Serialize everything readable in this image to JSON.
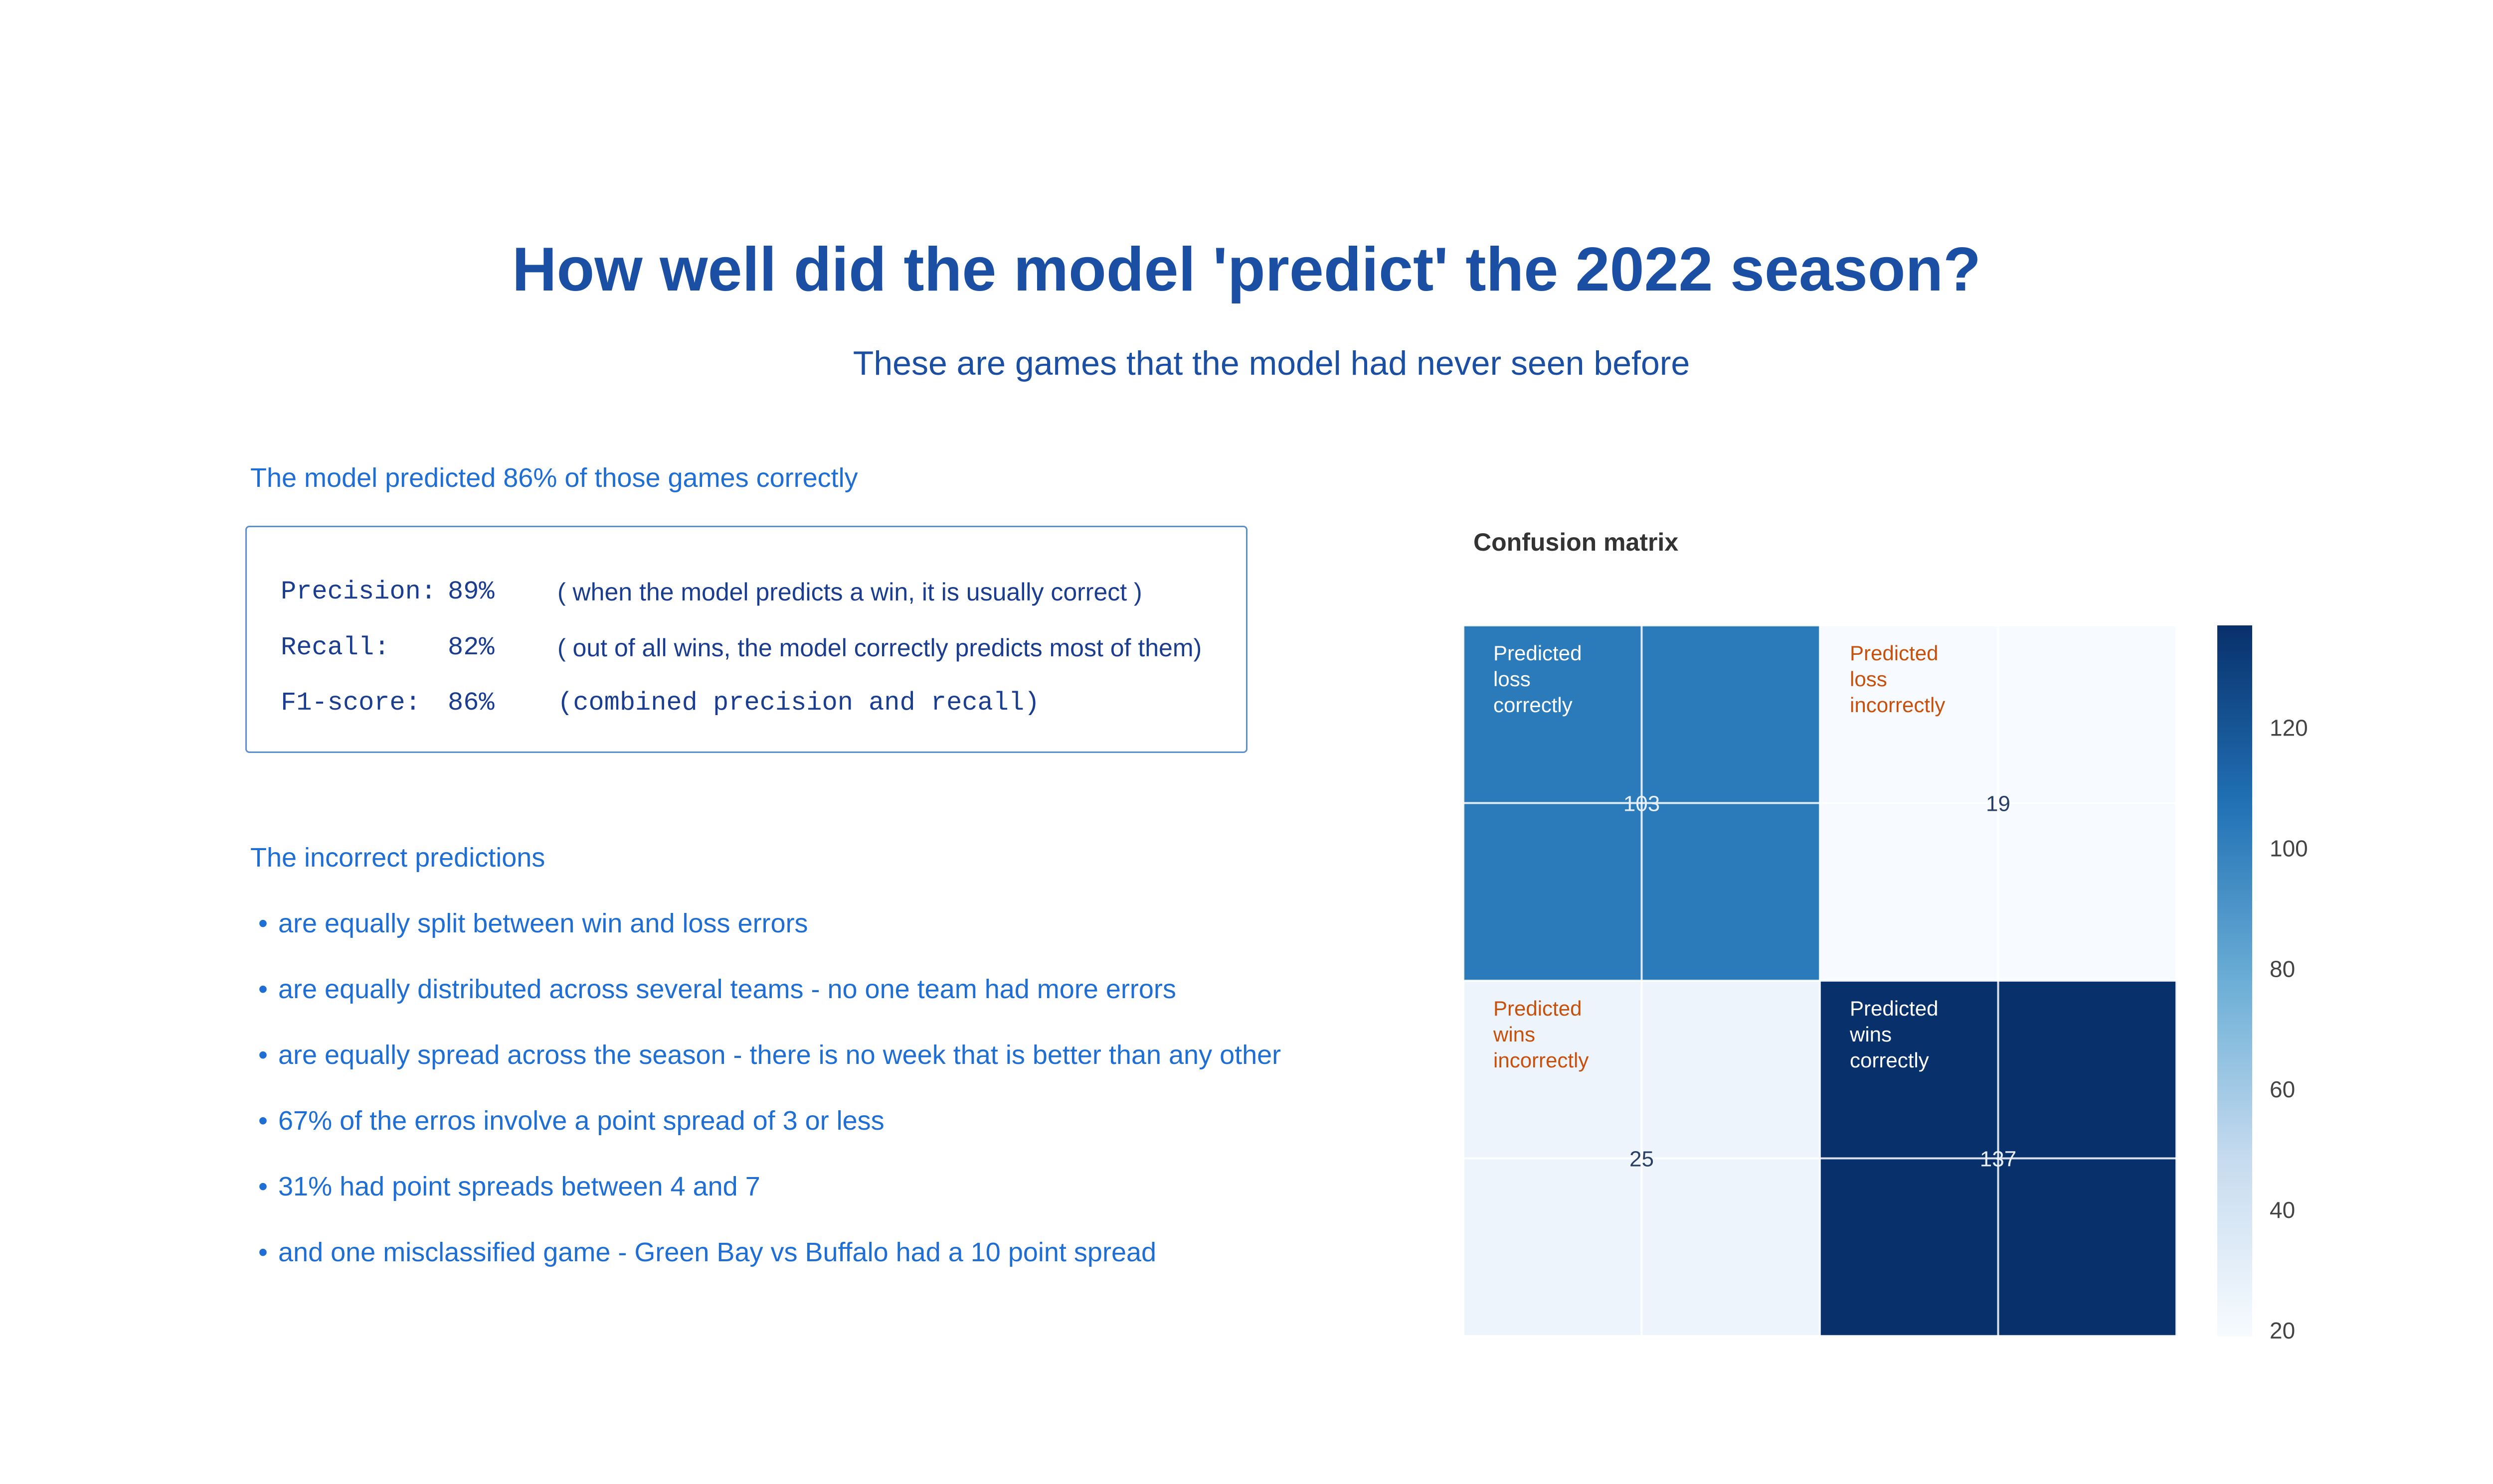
{
  "page": {
    "title": "How well did the model 'predict' the 2022 season?",
    "subtitle": "These are games that the model had never seen before"
  },
  "summary": {
    "accuracy_text": "The model predicted 86% of those games correctly"
  },
  "metrics": [
    {
      "name": "Precision:",
      "value": "89%",
      "note": "( when the model predicts a win, it is usually correct )"
    },
    {
      "name": "Recall:",
      "value": "82%",
      "note": "( out of all wins, the model correctly predicts most of them)"
    },
    {
      "name": "F1-score:",
      "value": "86%",
      "note": "(combined precision and recall)"
    }
  ],
  "incorrect": {
    "heading": "The incorrect predictions",
    "bullets": [
      "are equally split between win and loss errors",
      "are equally distributed across several teams - no one team had more errors",
      "are equally spread across the season - there is no week that is better than any other",
      "67% of the erros involve a point spread of 3 or less",
      "31% had point spreads between 4 and 7",
      "and one misclassified game - Green Bay vs Buffalo had a 10 point spread"
    ]
  },
  "colors": {
    "title": "#1a4fa3",
    "text_accent": "#1f6ed4",
    "annotation_correct": "#ffffff",
    "annotation_incorrect": "#c8500a",
    "colorscale_low": "#f7fbff",
    "colorscale_high": "#08306b"
  },
  "chart_data": {
    "type": "heatmap",
    "title": "Confusion matrix",
    "matrix": [
      [
        103,
        19
      ],
      [
        25,
        137
      ]
    ],
    "cells": [
      {
        "row": 0,
        "col": 0,
        "value": 103,
        "label": [
          "Predicted",
          " loss",
          "correctly"
        ],
        "kind": "correct"
      },
      {
        "row": 0,
        "col": 1,
        "value": 19,
        "label": [
          "Predicted",
          "loss",
          "incorrectly"
        ],
        "kind": "incorrect"
      },
      {
        "row": 1,
        "col": 0,
        "value": 25,
        "label": [
          "Predicted",
          "wins",
          "incorrectly"
        ],
        "kind": "incorrect"
      },
      {
        "row": 1,
        "col": 1,
        "value": 137,
        "label": [
          "Predicted",
          "wins",
          "correctly"
        ],
        "kind": "correct"
      }
    ],
    "colorbar": {
      "range": [
        19,
        137
      ],
      "ticks": [
        20,
        40,
        60,
        80,
        100,
        120
      ]
    },
    "colorscale": "Blues",
    "grid": true
  }
}
